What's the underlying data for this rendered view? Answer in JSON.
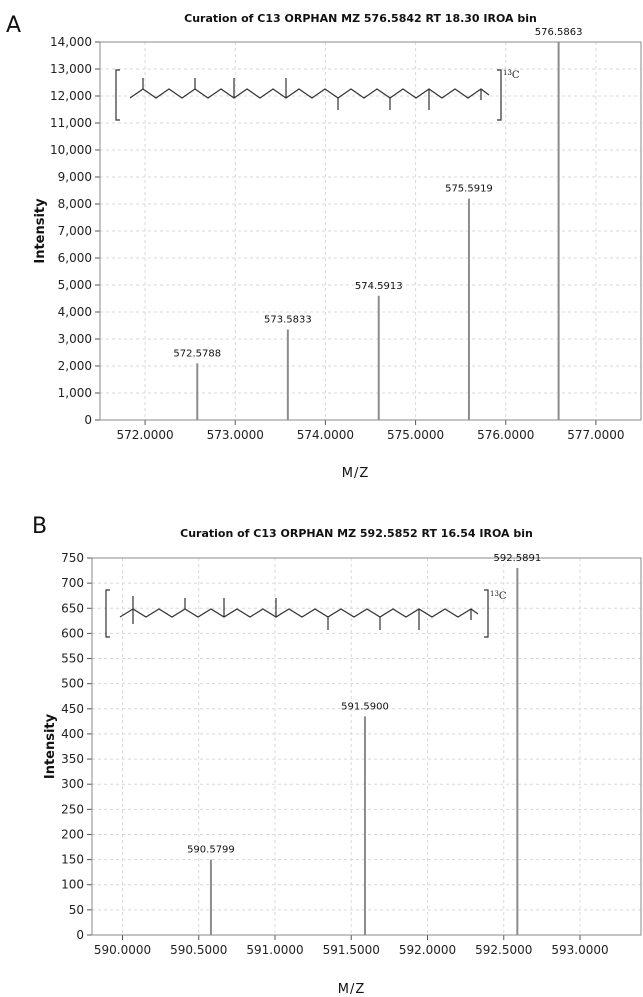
{
  "panels": [
    {
      "letter": "A"
    },
    {
      "letter": "B"
    }
  ],
  "chart_data": [
    {
      "type": "bar",
      "title": "Curation of C13 ORPHAN MZ 576.5842 RT 18.30 IROA bin",
      "xlabel": "M/Z",
      "ylabel": "Intensity",
      "xlim": [
        571.5,
        577.5
      ],
      "ylim": [
        0,
        14000
      ],
      "xticks": [
        572,
        573,
        574,
        575,
        576,
        577
      ],
      "xtick_labels": [
        "572.0000",
        "573.0000",
        "574.0000",
        "575.0000",
        "576.0000",
        "577.0000"
      ],
      "yticks": [
        0,
        1000,
        2000,
        3000,
        4000,
        5000,
        6000,
        7000,
        8000,
        9000,
        10000,
        11000,
        12000,
        13000,
        14000
      ],
      "ytick_labels": [
        "0",
        "1,000",
        "2,000",
        "3,000",
        "4,000",
        "5,000",
        "6,000",
        "7,000",
        "8,000",
        "9,000",
        "10,000",
        "11,000",
        "12,000",
        "13,000",
        "14,000"
      ],
      "grid": true,
      "peaks": [
        {
          "mz": 572.5788,
          "intensity": 2100,
          "label": "572.5788"
        },
        {
          "mz": 573.5833,
          "intensity": 3350,
          "label": "573.5833"
        },
        {
          "mz": 574.5913,
          "intensity": 4600,
          "label": "574.5913"
        },
        {
          "mz": 575.5919,
          "intensity": 8200,
          "label": "575.5919"
        },
        {
          "mz": 576.5863,
          "intensity": 14000,
          "label": "576.5863"
        }
      ],
      "isotope_label": "13C"
    },
    {
      "type": "bar",
      "title": "Curation of C13 ORPHAN MZ 592.5852 RT 16.54 IROA bin",
      "xlabel": "M/Z",
      "ylabel": "Intensity",
      "xlim": [
        589.8,
        593.4
      ],
      "ylim": [
        0,
        750
      ],
      "xticks": [
        590,
        590.5,
        591,
        591.5,
        592,
        592.5,
        593
      ],
      "xtick_labels": [
        "590.0000",
        "590.5000",
        "591.0000",
        "591.5000",
        "592.0000",
        "592.5000",
        "593.0000"
      ],
      "yticks": [
        0,
        50,
        100,
        150,
        200,
        250,
        300,
        350,
        400,
        450,
        500,
        550,
        600,
        650,
        700,
        750
      ],
      "ytick_labels": [
        "0",
        "50",
        "100",
        "150",
        "200",
        "250",
        "300",
        "350",
        "400",
        "450",
        "500",
        "550",
        "600",
        "650",
        "700",
        "750"
      ],
      "grid": true,
      "peaks": [
        {
          "mz": 590.5799,
          "intensity": 150,
          "label": "590.5799"
        },
        {
          "mz": 591.59,
          "intensity": 435,
          "label": "591.5900"
        },
        {
          "mz": 592.5891,
          "intensity": 730,
          "label": "592.5891"
        }
      ],
      "isotope_label": "13C"
    }
  ]
}
